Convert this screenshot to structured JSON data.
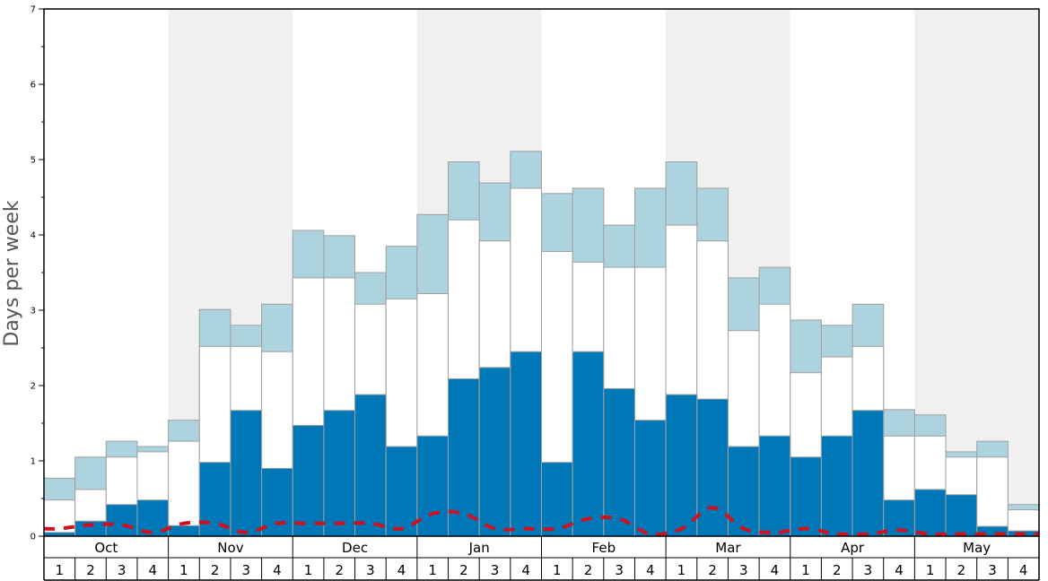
{
  "chart_data": {
    "type": "bar",
    "ylabel": "Days per week",
    "ylim": [
      0,
      7
    ],
    "y_ticks": [
      "0",
      "1",
      "2",
      "3",
      "4",
      "5",
      "6",
      "7"
    ],
    "months": [
      "Oct",
      "Nov",
      "Dec",
      "Jan",
      "Feb",
      "Mar",
      "Apr",
      "May"
    ],
    "week_labels": [
      "1",
      "2",
      "3",
      "4",
      "1",
      "2",
      "3",
      "4",
      "1",
      "2",
      "3",
      "4",
      "1",
      "2",
      "3",
      "4",
      "1",
      "2",
      "3",
      "4",
      "1",
      "2",
      "3",
      "4",
      "1",
      "2",
      "3",
      "4",
      "1",
      "2",
      "3",
      "4"
    ],
    "colors": {
      "dark": "#0077b6",
      "mid": "#ffffff",
      "light": "#add3df",
      "band": "#f0f0f0",
      "line": "#d0101e",
      "bar_stroke": "#a0a0a0"
    },
    "series": [
      {
        "values": [
          0.05,
          0.2,
          0.42,
          0.48,
          0.14,
          0.98,
          1.67,
          0.9,
          1.47,
          1.67,
          1.88,
          1.19,
          1.33,
          2.09,
          2.24,
          2.45,
          0.98,
          2.45,
          1.96,
          1.54,
          1.88,
          1.82,
          1.19,
          1.33,
          1.05,
          1.33,
          1.67,
          0.48,
          0.62,
          0.55,
          0.13,
          0.07
        ]
      },
      {
        "values": [
          0.48,
          0.62,
          1.05,
          1.12,
          1.26,
          2.52,
          2.52,
          2.45,
          3.43,
          3.43,
          3.08,
          3.15,
          3.22,
          4.2,
          3.92,
          4.62,
          3.78,
          3.64,
          3.57,
          3.57,
          4.13,
          3.92,
          2.73,
          3.08,
          2.17,
          2.38,
          2.52,
          1.33,
          1.33,
          1.05,
          1.05,
          0.35
        ]
      },
      {
        "values": [
          0.77,
          1.05,
          1.26,
          1.19,
          1.54,
          3.01,
          2.8,
          3.08,
          4.06,
          3.99,
          3.5,
          3.85,
          4.27,
          4.97,
          4.69,
          5.11,
          4.55,
          4.62,
          4.13,
          4.62,
          4.97,
          4.62,
          3.43,
          3.57,
          2.87,
          2.8,
          3.08,
          1.68,
          1.61,
          1.12,
          1.26,
          0.42
        ]
      }
    ],
    "line_values": [
      0.1,
      0.15,
      0.15,
      0.05,
      0.17,
      0.17,
      0.05,
      0.17,
      0.17,
      0.17,
      0.17,
      0.1,
      0.3,
      0.3,
      0.1,
      0.1,
      0.1,
      0.23,
      0.23,
      0.03,
      0.1,
      0.38,
      0.1,
      0.05,
      0.1,
      0.03,
      0.03,
      0.08,
      0.03,
      0.03,
      0.03,
      0.03
    ]
  }
}
